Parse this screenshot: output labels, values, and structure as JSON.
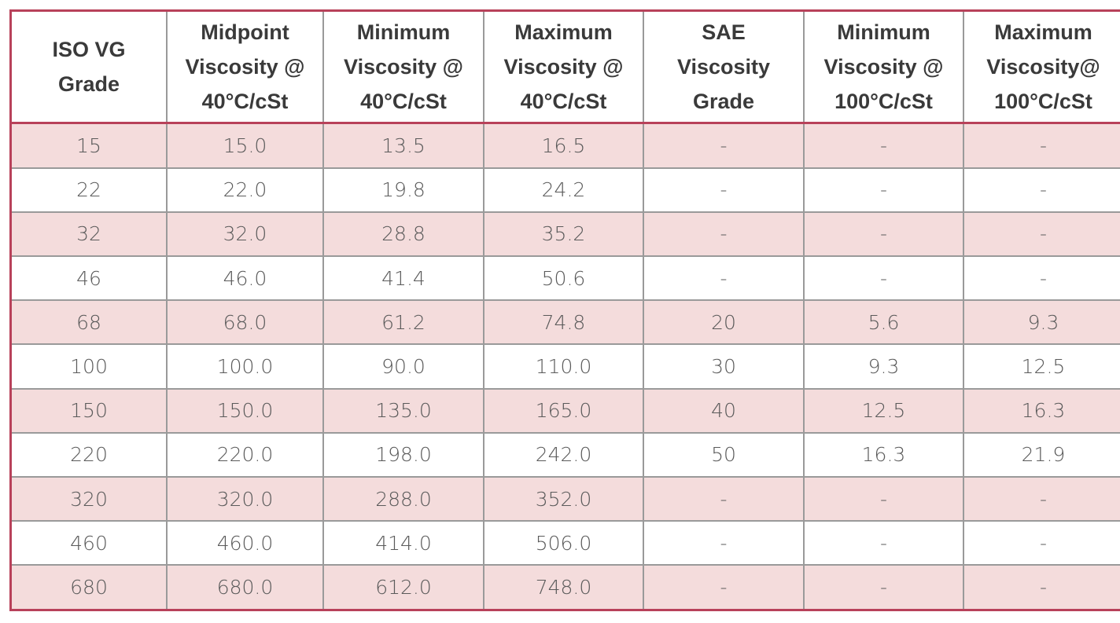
{
  "table": {
    "headers": [
      [
        "ISO VG",
        "Grade"
      ],
      [
        "Midpoint",
        "Viscosity @",
        "40°C/cSt"
      ],
      [
        "Minimum",
        "Viscosity @",
        "40°C/cSt"
      ],
      [
        "Maximum",
        "Viscosity @",
        "40°C/cSt"
      ],
      [
        "SAE",
        "Viscosity",
        "Grade"
      ],
      [
        "Minimum",
        "Viscosity @",
        "100°C/cSt"
      ],
      [
        "Maximum",
        "Viscosity@",
        "100°C/cSt"
      ]
    ],
    "rows": [
      [
        "15",
        "15.0",
        "13.5",
        "16.5",
        "-",
        "-",
        "-"
      ],
      [
        "22",
        "22.0",
        "19.8",
        "24.2",
        "-",
        "-",
        "-"
      ],
      [
        "32",
        "32.0",
        "28.8",
        "35.2",
        "-",
        "-",
        "-"
      ],
      [
        "46",
        "46.0",
        "41.4",
        "50.6",
        "-",
        "-",
        "-"
      ],
      [
        "68",
        "68.0",
        "61.2",
        "74.8",
        "20",
        "5.6",
        "9.3"
      ],
      [
        "100",
        "100.0",
        "90.0",
        "110.0",
        "30",
        "9.3",
        "12.5"
      ],
      [
        "150",
        "150.0",
        "135.0",
        "165.0",
        "40",
        "12.5",
        "16.3"
      ],
      [
        "220",
        "220.0",
        "198.0",
        "242.0",
        "50",
        "16.3",
        "21.9"
      ],
      [
        "320",
        "320.0",
        "288.0",
        "352.0",
        "-",
        "-",
        "-"
      ],
      [
        "460",
        "460.0",
        "414.0",
        "506.0",
        "-",
        "-",
        "-"
      ],
      [
        "680",
        "680.0",
        "612.0",
        "748.0",
        "-",
        "-",
        "-"
      ]
    ]
  }
}
